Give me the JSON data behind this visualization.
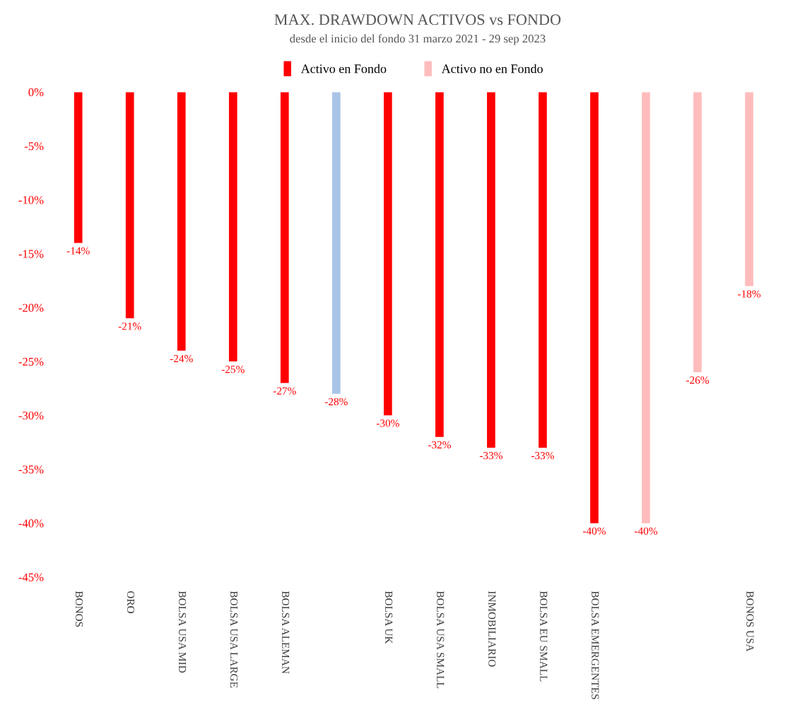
{
  "chart_data": {
    "type": "bar",
    "title": "MAX. DRAWDOWN ACTIVOS vs FONDO",
    "subtitle": "desde el inicio del fondo 31 marzo 2021 - 29 sep 2023",
    "categories": [
      "BONOS",
      "ORO",
      "BOLSA USA MID",
      "BOLSA USA LARGE",
      "BOLSA ALEMAN",
      null,
      "BOLSA UK",
      "BOLSA USA SMALL",
      "INMOBILIARIO",
      "BOLSA EU SMALL",
      "BOLSA EMERGENTES",
      null,
      null,
      "BONOS USA"
    ],
    "series": [
      {
        "name": "Activo en Fondo",
        "color": "#ff0000",
        "values": [
          -14,
          -21,
          -24,
          -25,
          -27,
          null,
          -30,
          -32,
          -33,
          -33,
          -40,
          null,
          null,
          null
        ],
        "value_labels": [
          "-14%",
          "-21%",
          "-24%",
          "-25%",
          "-27%",
          null,
          "-30%",
          "-32%",
          "-33%",
          "-33%",
          "-40%",
          null,
          null,
          null
        ]
      },
      {
        "color": "#a9c4e8",
        "values": [
          null,
          null,
          null,
          null,
          null,
          -28,
          null,
          null,
          null,
          null,
          null,
          null,
          null,
          null
        ],
        "value_labels": [
          null,
          null,
          null,
          null,
          null,
          "-28%",
          null,
          null,
          null,
          null,
          null,
          null,
          null,
          null
        ]
      },
      {
        "name": "Activo no en Fondo",
        "color": "#ffbcbc",
        "values": [
          null,
          null,
          null,
          null,
          null,
          null,
          null,
          null,
          null,
          null,
          null,
          -40,
          -26,
          -18
        ],
        "value_labels": [
          null,
          null,
          null,
          null,
          null,
          null,
          null,
          null,
          null,
          null,
          null,
          "-40%",
          "-26%",
          "-18%"
        ]
      }
    ],
    "ylim": [
      -45,
      0
    ],
    "yticks": [
      {
        "value": 0,
        "label": "0%"
      },
      {
        "value": -5,
        "label": "-5%"
      },
      {
        "value": -10,
        "label": "-10%"
      },
      {
        "value": -15,
        "label": "-15%"
      },
      {
        "value": -20,
        "label": "-20%"
      },
      {
        "value": -25,
        "label": "-25%"
      },
      {
        "value": -30,
        "label": "-30%"
      },
      {
        "value": -35,
        "label": "-35%"
      },
      {
        "value": -40,
        "label": "-40%"
      },
      {
        "value": -45,
        "label": "-45%"
      }
    ],
    "grid": false,
    "legend": "top"
  }
}
